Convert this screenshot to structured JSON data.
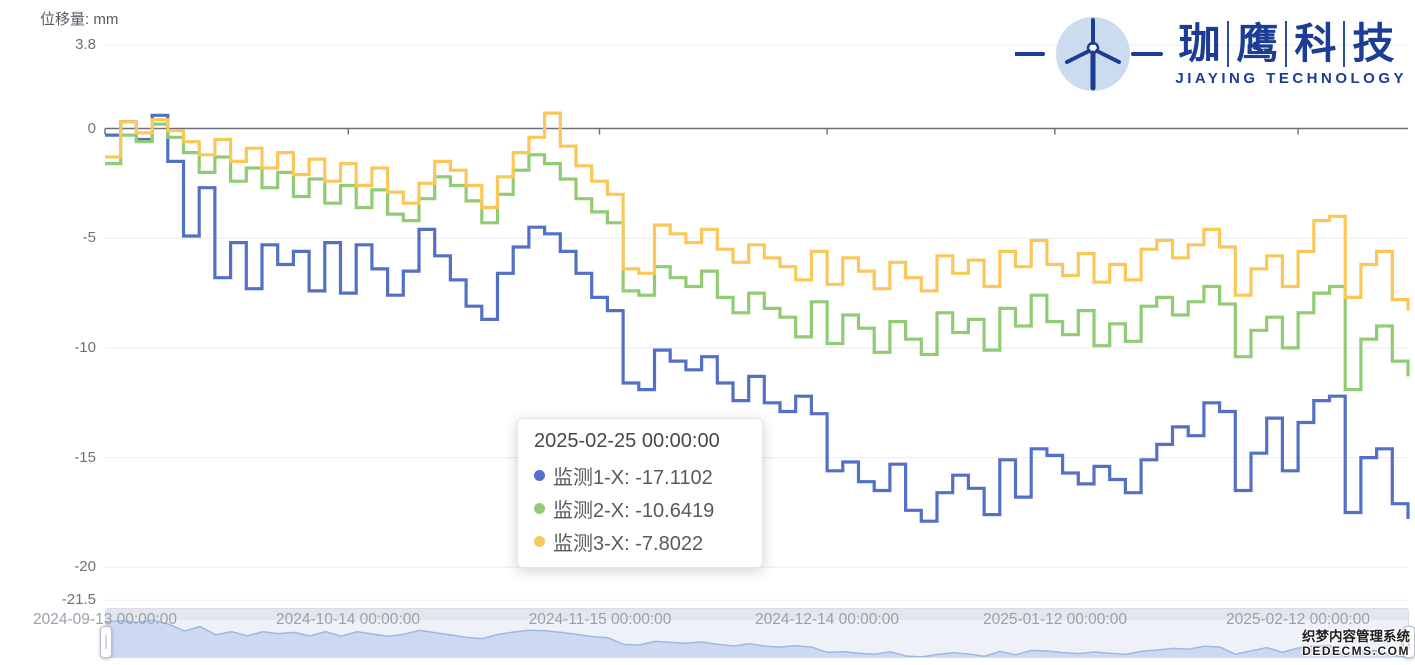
{
  "header": {
    "y_axis_title": "位移量: mm"
  },
  "logo": {
    "cn_chars": [
      "珈",
      "鹰",
      "科",
      "技"
    ],
    "en": "JIAYING TECHNOLOGY",
    "color": "#1c3c96",
    "icon": "wind-turbine-icon"
  },
  "watermark": {
    "line1": "织梦内容管理系统",
    "line2": "DEDECMS.COM"
  },
  "tooltip": {
    "title": "2025-02-25 00:00:00",
    "items": [
      {
        "text": "监测1-X: -17.1102",
        "label": "监测1-X",
        "value": -17.1102,
        "color": "#5470c6"
      },
      {
        "text": "监测2-X: -10.6419",
        "label": "监测2-X",
        "value": -10.6419,
        "color": "#91cc75"
      },
      {
        "text": "监测3-X: -7.8022",
        "label": "监测3-X",
        "value": -7.8022,
        "color": "#fac858"
      }
    ]
  },
  "chart_data": {
    "type": "line",
    "step": "end",
    "ylabel": "位移量: mm",
    "ylim": [
      -21.5,
      3.8
    ],
    "grid": true,
    "legend_position": "none",
    "y_ticks": [
      3.8,
      0,
      -5,
      -10,
      -15,
      -20,
      -21.5
    ],
    "y_tick_labels": [
      "3.8",
      "0",
      "-5",
      "-10",
      "-15",
      "-20",
      "-21.5"
    ],
    "x_ticks": [
      "2024-09-13 00:00:00",
      "2024-10-14 00:00:00",
      "2024-11-15 00:00:00",
      "2024-12-14 00:00:00",
      "2025-01-12 00:00:00",
      "2025-02-12 00:00:00"
    ],
    "x_start": "2024-09-13",
    "x_end": "2025-02-26",
    "x_step_days": 2,
    "hovered_x": "2025-02-25 00:00:00",
    "series": [
      {
        "name": "监测1-X",
        "color": "#5470c6",
        "values": [
          -0.3,
          0.3,
          -0.5,
          0.6,
          -1.5,
          -4.9,
          -2.7,
          -6.8,
          -5.2,
          -7.3,
          -5.3,
          -6.2,
          -5.6,
          -7.4,
          -5.2,
          -7.5,
          -5.3,
          -6.4,
          -7.6,
          -6.5,
          -4.6,
          -5.8,
          -6.9,
          -8.1,
          -8.7,
          -6.6,
          -5.4,
          -4.5,
          -4.8,
          -5.6,
          -6.6,
          -7.7,
          -8.3,
          -11.6,
          -11.9,
          -10.1,
          -10.6,
          -11.0,
          -10.4,
          -11.6,
          -12.4,
          -11.3,
          -12.5,
          -12.9,
          -12.2,
          -13.0,
          -15.6,
          -15.2,
          -16.1,
          -16.5,
          -15.3,
          -17.4,
          -17.9,
          -16.6,
          -15.8,
          -16.4,
          -17.6,
          -15.1,
          -16.8,
          -14.6,
          -14.9,
          -15.7,
          -16.2,
          -15.4,
          -16.0,
          -16.6,
          -15.1,
          -14.4,
          -13.6,
          -14.0,
          -12.5,
          -12.9,
          -16.5,
          -14.8,
          -13.2,
          -15.6,
          -13.4,
          -12.4,
          -12.2,
          -17.5,
          -15.0,
          -14.6,
          -17.1,
          -17.8
        ]
      },
      {
        "name": "监测2-X",
        "color": "#91cc75",
        "values": [
          -1.6,
          -0.3,
          -0.6,
          0.2,
          -0.4,
          -1.1,
          -2.0,
          -1.3,
          -2.4,
          -1.8,
          -2.7,
          -2.0,
          -3.1,
          -2.3,
          -3.4,
          -2.6,
          -3.6,
          -2.8,
          -3.9,
          -4.2,
          -3.2,
          -2.2,
          -2.6,
          -3.3,
          -4.3,
          -3.0,
          -1.9,
          -1.2,
          -1.6,
          -2.3,
          -3.2,
          -3.8,
          -4.3,
          -7.4,
          -7.6,
          -6.3,
          -6.8,
          -7.2,
          -6.5,
          -7.7,
          -8.4,
          -7.5,
          -8.2,
          -8.6,
          -9.5,
          -7.9,
          -9.8,
          -8.5,
          -9.1,
          -10.2,
          -8.8,
          -9.6,
          -10.3,
          -8.4,
          -9.3,
          -8.7,
          -10.1,
          -8.2,
          -9.0,
          -7.6,
          -8.8,
          -9.4,
          -8.3,
          -9.9,
          -8.9,
          -9.7,
          -8.1,
          -7.7,
          -8.5,
          -7.9,
          -7.2,
          -8.0,
          -10.4,
          -9.2,
          -8.6,
          -10.0,
          -8.4,
          -7.5,
          -7.2,
          -11.9,
          -9.6,
          -9.0,
          -10.6,
          -11.3
        ]
      },
      {
        "name": "监测3-X",
        "color": "#fac858",
        "values": [
          -1.3,
          0.3,
          -0.2,
          0.4,
          -0.1,
          -0.6,
          -1.2,
          -0.5,
          -1.5,
          -0.9,
          -1.8,
          -1.1,
          -2.1,
          -1.4,
          -2.4,
          -1.6,
          -2.6,
          -1.8,
          -2.9,
          -3.4,
          -2.5,
          -1.5,
          -1.9,
          -2.6,
          -3.6,
          -2.2,
          -1.1,
          -0.4,
          0.7,
          -0.8,
          -1.7,
          -2.4,
          -3.0,
          -6.4,
          -6.6,
          -4.4,
          -4.8,
          -5.2,
          -4.6,
          -5.5,
          -6.1,
          -5.3,
          -5.9,
          -6.3,
          -6.9,
          -5.6,
          -7.1,
          -5.9,
          -6.5,
          -7.3,
          -6.1,
          -6.8,
          -7.4,
          -5.8,
          -6.6,
          -6.0,
          -7.2,
          -5.6,
          -6.3,
          -5.1,
          -6.2,
          -6.7,
          -5.7,
          -7.0,
          -6.2,
          -6.9,
          -5.5,
          -5.1,
          -5.9,
          -5.3,
          -4.6,
          -5.4,
          -7.6,
          -6.4,
          -5.8,
          -7.2,
          -5.6,
          -4.2,
          -4.0,
          -7.7,
          -6.2,
          -5.6,
          -7.8,
          -8.3
        ]
      }
    ],
    "datazoom": {
      "start": "2024-09-13 00:00:00",
      "end": "2025-02-26 00:00:00",
      "selected_percent": 100
    }
  },
  "colors": {
    "axis_line": "#6e7079",
    "grid_line": "#e8edf5",
    "axis_label": "#6e7079",
    "x_label": "#9aa0ab",
    "slider_fill": "#ccd9f1",
    "slider_line": "#9fb7e2",
    "series": [
      "#5470c6",
      "#91cc75",
      "#fac858"
    ]
  }
}
